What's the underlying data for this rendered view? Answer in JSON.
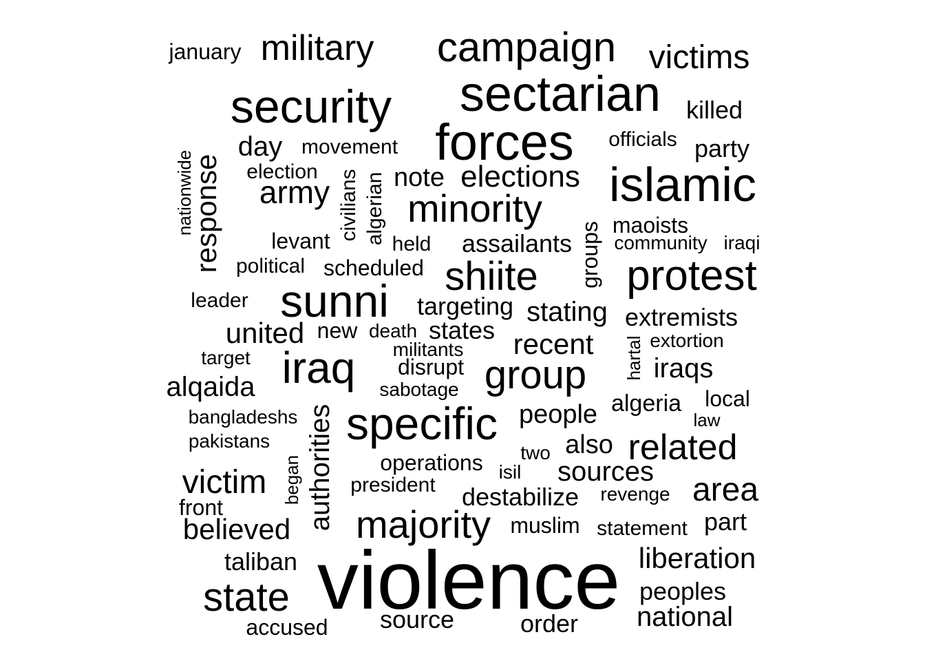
{
  "words": [
    {
      "text": "violence"
    },
    {
      "text": "sectarian"
    },
    {
      "text": "forces"
    },
    {
      "text": "security"
    },
    {
      "text": "islamic"
    },
    {
      "text": "campaign"
    },
    {
      "text": "specific"
    },
    {
      "text": "sunni"
    },
    {
      "text": "protest"
    },
    {
      "text": "shiite"
    },
    {
      "text": "minority"
    },
    {
      "text": "group"
    },
    {
      "text": "majority"
    },
    {
      "text": "iraq"
    },
    {
      "text": "state"
    },
    {
      "text": "military"
    },
    {
      "text": "victims"
    },
    {
      "text": "elections"
    },
    {
      "text": "army"
    },
    {
      "text": "related"
    },
    {
      "text": "area"
    },
    {
      "text": "victim"
    },
    {
      "text": "liberation"
    },
    {
      "text": "recent"
    },
    {
      "text": "believed"
    },
    {
      "text": "response"
    },
    {
      "text": "national"
    },
    {
      "text": "iraqs"
    },
    {
      "text": "alqaida"
    },
    {
      "text": "sources"
    },
    {
      "text": "authorities"
    },
    {
      "text": "stating"
    },
    {
      "text": "united"
    },
    {
      "text": "peoples"
    },
    {
      "text": "killed"
    },
    {
      "text": "party"
    },
    {
      "text": "day"
    },
    {
      "text": "destabilize"
    },
    {
      "text": "assailants"
    },
    {
      "text": "targeting"
    },
    {
      "text": "note"
    },
    {
      "text": "taliban"
    },
    {
      "text": "people"
    },
    {
      "text": "extremists"
    },
    {
      "text": "order"
    },
    {
      "text": "states"
    },
    {
      "text": "algeria"
    },
    {
      "text": "source"
    },
    {
      "text": "groups"
    },
    {
      "text": "part"
    },
    {
      "text": "also"
    },
    {
      "text": "operations"
    },
    {
      "text": "maoists"
    },
    {
      "text": "accused"
    },
    {
      "text": "scheduled"
    },
    {
      "text": "civilians"
    },
    {
      "text": "algerian"
    },
    {
      "text": "local"
    },
    {
      "text": "movement"
    },
    {
      "text": "levant"
    },
    {
      "text": "muslim"
    },
    {
      "text": "disrupt"
    },
    {
      "text": "new"
    },
    {
      "text": "statement"
    },
    {
      "text": "january"
    },
    {
      "text": "political"
    },
    {
      "text": "election"
    },
    {
      "text": "leader"
    },
    {
      "text": "officials"
    },
    {
      "text": "president"
    },
    {
      "text": "community"
    },
    {
      "text": "iraqi"
    },
    {
      "text": "held"
    },
    {
      "text": "extortion"
    },
    {
      "text": "revenge"
    },
    {
      "text": "bangladeshs"
    },
    {
      "text": "pakistans"
    },
    {
      "text": "sabotage"
    },
    {
      "text": "two"
    },
    {
      "text": "death"
    },
    {
      "text": "militants"
    },
    {
      "text": "target"
    },
    {
      "text": "isil"
    },
    {
      "text": "front"
    },
    {
      "text": "law"
    },
    {
      "text": "began"
    },
    {
      "text": "hartal"
    },
    {
      "text": "nationwide"
    }
  ]
}
